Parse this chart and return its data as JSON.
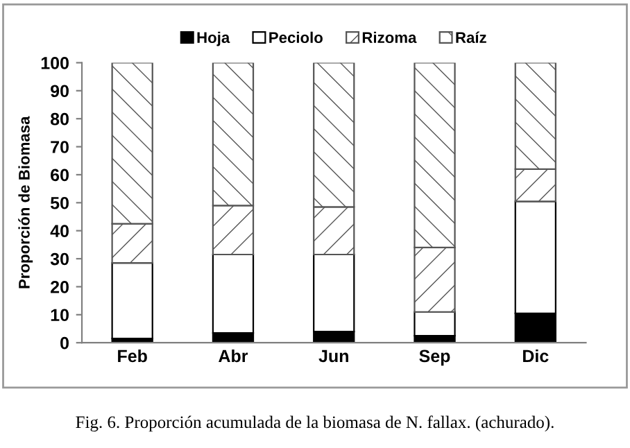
{
  "chart_data": {
    "type": "bar",
    "stacked": true,
    "ylabel": "Proporción de Biomasa",
    "categories": [
      "Feb",
      "Abr",
      "Jun",
      "Sep",
      "Dic"
    ],
    "series": [
      {
        "name": "Hoja",
        "color": "#000000",
        "values": [
          1.5,
          3.5,
          4,
          2.5,
          10.5
        ]
      },
      {
        "name": "Peciolo",
        "color": "#ffffff",
        "values": [
          27,
          28,
          27.5,
          8.5,
          40
        ]
      },
      {
        "name": "Rizoma",
        "color": "#555555",
        "values": [
          14,
          17.5,
          17,
          23,
          11.5
        ]
      },
      {
        "name": "Raíz",
        "color": "#555555",
        "values": [
          57.5,
          51,
          51.5,
          66,
          38
        ]
      }
    ],
    "ylim": [
      0,
      100
    ],
    "yticks": [
      0,
      10,
      20,
      30,
      40,
      50,
      60,
      70,
      80,
      90,
      100
    ],
    "grid": false,
    "legend": "top",
    "annotations": [
      "Fig. 6. Proporción acumulada de la biomasa de N. fallax. (achurado)."
    ]
  }
}
